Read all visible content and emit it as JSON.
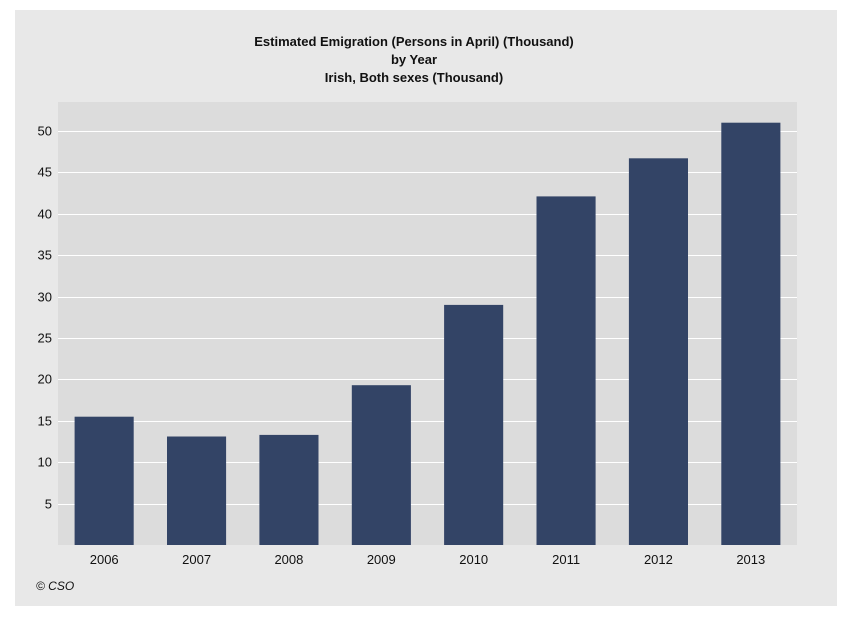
{
  "chart_data": {
    "type": "bar",
    "title_lines": [
      "Estimated Emigration (Persons in April) (Thousand)",
      "by Year",
      "Irish, Both sexes (Thousand)"
    ],
    "categories": [
      "2006",
      "2007",
      "2008",
      "2009",
      "2010",
      "2011",
      "2012",
      "2013"
    ],
    "values": [
      15.5,
      13.1,
      13.3,
      19.3,
      29.0,
      42.1,
      46.7,
      51.0
    ],
    "y_ticks": [
      5,
      10,
      15,
      20,
      25,
      30,
      35,
      40,
      45,
      50
    ],
    "ylim": [
      0,
      53.5
    ],
    "grid": true,
    "legend": "none",
    "bar_color": "#334466",
    "plot_background": "#dcdcdc",
    "panel_background": "#e8e8e8"
  },
  "footer": {
    "credit": "© CSO"
  }
}
